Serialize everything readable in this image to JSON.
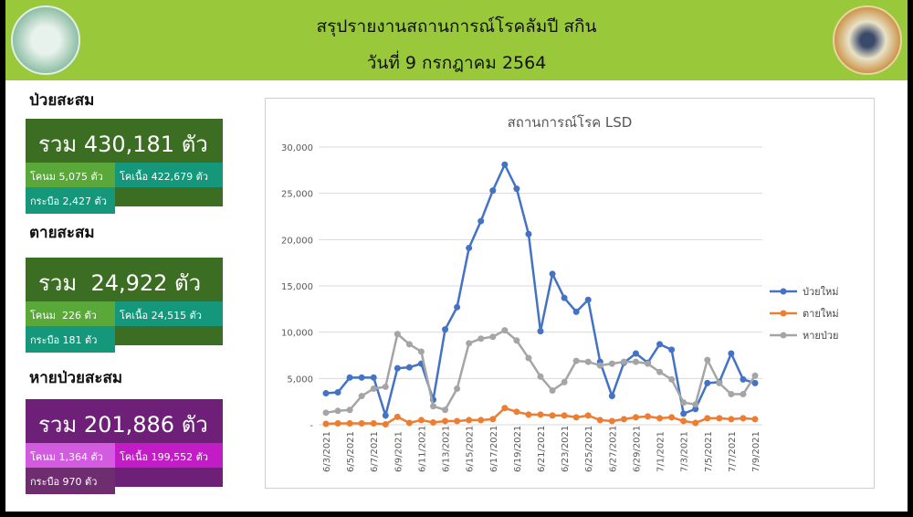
{
  "header": {
    "title": "สรุปรายงานสถานการณ์โรคลัมปี สกิน",
    "date": "วันที่ 9 กรกฎาคม 2564",
    "logo_left": "department-seal-icon",
    "logo_right": "ministry-seal-icon"
  },
  "panels": [
    {
      "title": "ป่วยสะสม",
      "total": "รวม 430,181 ตัว",
      "dairy": "โคนม 5,075 ตัว",
      "beef": "โคเนื้อ 422,679 ตัว",
      "buffalo": "กระบือ 2,427 ตัว",
      "colors": {
        "total": "#3b6e22",
        "dairy": "#5aa73a",
        "beef": "#14977a",
        "buffalo": "#14977a"
      }
    },
    {
      "title": "ตายสะสม",
      "total": "รวม  24,922 ตัว",
      "dairy": "โคนม  226 ตัว",
      "beef": "โคเนื้อ 24,515 ตัว",
      "buffalo": "กระบือ 181 ตัว",
      "colors": {
        "total": "#3b6e22",
        "dairy": "#5aa73a",
        "beef": "#14977a",
        "buffalo": "#14977a"
      }
    },
    {
      "title": "หายป่วยสะสม",
      "total": "รวม 201,886 ตัว",
      "dairy": "โคนม 1,364 ตัว",
      "beef": "โคเนื้อ 199,552 ตัว",
      "buffalo": "กระบือ 970 ตัว",
      "colors": {
        "total": "#6e1f77",
        "dairy": "#d35be0",
        "beef": "#c21cc7",
        "buffalo": "#6e2d6e"
      }
    }
  ],
  "chart_data": {
    "type": "line",
    "title": "สถานการณ์โรค LSD",
    "ylim": [
      0,
      30000
    ],
    "yticks": [
      "-",
      "5,000",
      "10,000",
      "15,000",
      "20,000",
      "25,000",
      "30,000"
    ],
    "grid": true,
    "legend": "right",
    "x": [
      "6/3/2021",
      "6/4/2021",
      "6/5/2021",
      "6/6/2021",
      "6/7/2021",
      "6/8/2021",
      "6/9/2021",
      "6/10/2021",
      "6/11/2021",
      "6/12/2021",
      "6/13/2021",
      "6/14/2021",
      "6/15/2021",
      "6/16/2021",
      "6/17/2021",
      "6/18/2021",
      "6/19/2021",
      "6/20/2021",
      "6/21/2021",
      "6/22/2021",
      "6/23/2021",
      "6/24/2021",
      "6/25/2021",
      "6/26/2021",
      "6/27/2021",
      "6/28/2021",
      "6/29/2021",
      "6/30/2021",
      "7/1/2021",
      "7/2/2021",
      "7/3/2021",
      "7/4/2021",
      "7/5/2021",
      "7/6/2021",
      "7/7/2021",
      "7/8/2021",
      "7/9/2021"
    ],
    "series": [
      {
        "name": "ป่วยใหม่",
        "color": "#4472c4",
        "values": [
          3400,
          3500,
          5100,
          5100,
          5100,
          1000,
          6100,
          6200,
          6600,
          2700,
          10300,
          12700,
          19100,
          22000,
          25300,
          28100,
          25500,
          20600,
          10100,
          16300,
          13700,
          12200,
          13500,
          6800,
          3100,
          6700,
          7700,
          6700,
          8700,
          8100,
          1200,
          1700,
          4500,
          4600,
          7700,
          4900,
          4500
        ]
      },
      {
        "name": "ตายใหม่",
        "color": "#ed7d31",
        "values": [
          100,
          150,
          150,
          150,
          150,
          50,
          850,
          200,
          500,
          250,
          400,
          400,
          500,
          500,
          600,
          1800,
          1400,
          1100,
          1100,
          1000,
          1000,
          800,
          1000,
          500,
          400,
          600,
          800,
          900,
          700,
          800,
          400,
          200,
          700,
          700,
          600,
          700,
          600
        ]
      },
      {
        "name": "หายป่วย",
        "color": "#a5a5a5",
        "values": [
          1300,
          1500,
          1600,
          3100,
          3900,
          4100,
          9800,
          8700,
          7900,
          2000,
          1600,
          3900,
          8800,
          9300,
          9500,
          10200,
          9100,
          7200,
          5200,
          3700,
          4600,
          6900,
          6800,
          6400,
          6600,
          6800,
          6800,
          6600,
          5700,
          4900,
          2400,
          2200,
          7000,
          4500,
          3300,
          3300,
          5300
        ]
      }
    ]
  }
}
